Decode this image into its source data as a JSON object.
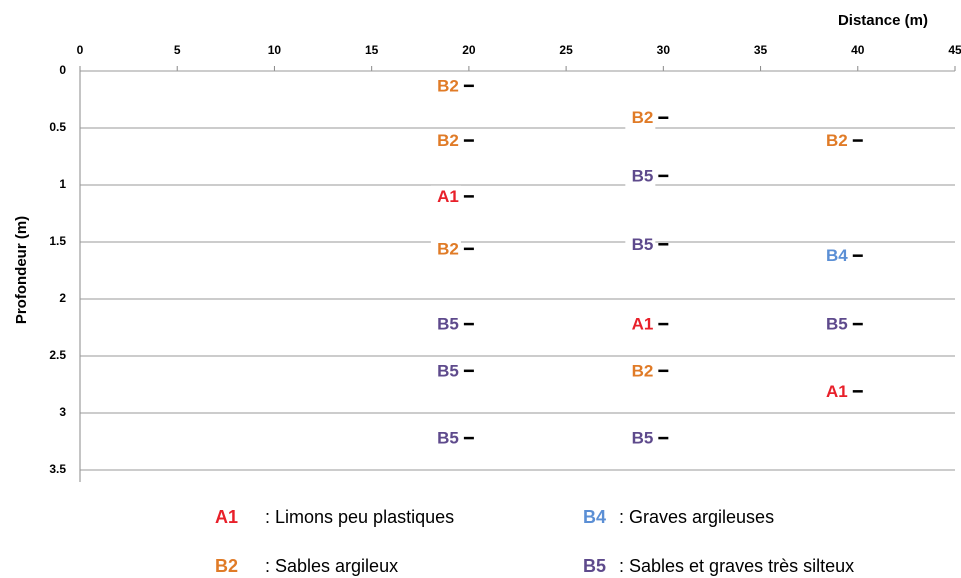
{
  "chart_data": {
    "type": "scatter",
    "x_label": "Distance (m)",
    "y_label": "Profondeur (m)",
    "xlim": [
      0,
      45
    ],
    "xticks": [
      0,
      5,
      10,
      15,
      20,
      25,
      30,
      35,
      40,
      45
    ],
    "ylim": [
      0,
      3.5
    ],
    "yticks": [
      0,
      0.5,
      1,
      1.5,
      2,
      2.5,
      3,
      3.5
    ],
    "y_inverted": true,
    "grid": true,
    "series": [
      {
        "name": "A1",
        "description": ": Limons peu plastiques",
        "color": "#e8202a",
        "x": [
          20,
          30,
          40
        ],
        "y": [
          1.1,
          2.22,
          2.81
        ]
      },
      {
        "name": "B2",
        "description": ": Sables argileux",
        "color": "#e07b27",
        "x": [
          20,
          20,
          20,
          30,
          30,
          40
        ],
        "y": [
          0.13,
          0.61,
          1.56,
          0.41,
          2.63,
          0.61
        ]
      },
      {
        "name": "B4",
        "description": ": Graves argileuses",
        "color": "#5b8fd5",
        "x": [
          40
        ],
        "y": [
          1.62
        ]
      },
      {
        "name": "B5",
        "description": ": Sables et graves très silteux",
        "color": "#5e4a8c",
        "x": [
          20,
          20,
          20,
          30,
          30,
          30,
          40
        ],
        "y": [
          2.22,
          2.63,
          3.22,
          0.92,
          1.52,
          3.22,
          2.22
        ]
      }
    ]
  }
}
